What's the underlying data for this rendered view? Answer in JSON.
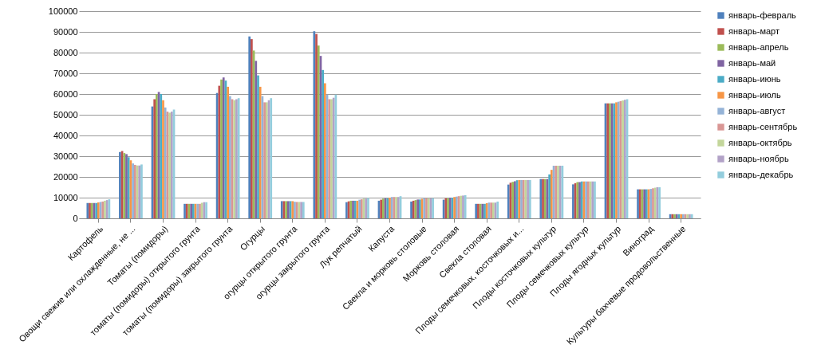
{
  "chart_data": {
    "type": "bar",
    "categories": [
      "Картофель",
      "Овощи свежие или охлажденные, не ...",
      "Томаты (помидоры)",
      "томаты (помидоры) открытого грунта",
      "томаты (помидоры) закрытого грунта",
      "Огурцы",
      "огурцы открытого грунта",
      "огурцы закрытого грунта",
      "Лук репчатый",
      "Капуста",
      "Свекла и морковь столовые",
      "Морковь столовая",
      "Свекла столовая",
      "Плоды семечковых, косточковых и...",
      "Плоды косточковых культур",
      "Плоды семечковых культур",
      "Плоды ягодных культур",
      "Виноград",
      "Культуры бахчевые продовольственные"
    ],
    "series": [
      {
        "name": "январь-февраль",
        "color": "#4f81bd",
        "values": [
          7400,
          32000,
          54000,
          7000,
          60500,
          87800,
          8300,
          90300,
          7800,
          8500,
          8100,
          9000,
          7000,
          16300,
          19000,
          16400,
          55500,
          14000,
          2000
        ]
      },
      {
        "name": "январь-март",
        "color": "#c0504d",
        "values": [
          7400,
          32500,
          57500,
          7000,
          64000,
          86500,
          8300,
          89000,
          8200,
          9000,
          8500,
          9700,
          7000,
          17200,
          19000,
          17000,
          55500,
          14000,
          2000
        ]
      },
      {
        "name": "январь-апрель",
        "color": "#9bbb59",
        "values": [
          7400,
          31500,
          60000,
          7000,
          67000,
          81000,
          8300,
          83400,
          8500,
          9500,
          8800,
          9700,
          7000,
          17600,
          19000,
          17500,
          55500,
          14000,
          2000
        ]
      },
      {
        "name": "январь-май",
        "color": "#8064a2",
        "values": [
          7400,
          31000,
          61000,
          7000,
          68000,
          76000,
          8300,
          78400,
          8500,
          9700,
          9100,
          10000,
          7000,
          17900,
          19000,
          17500,
          55500,
          14000,
          2000
        ]
      },
      {
        "name": "январь-июнь",
        "color": "#4bacc6",
        "values": [
          7400,
          29500,
          60000,
          7000,
          66500,
          69000,
          8300,
          71600,
          8500,
          9700,
          9100,
          10000,
          7000,
          18400,
          21200,
          17800,
          55500,
          14000,
          2000
        ]
      },
      {
        "name": "январь-июль",
        "color": "#f79646",
        "values": [
          7700,
          28000,
          57000,
          7000,
          63500,
          63500,
          8300,
          65200,
          8500,
          10000,
          9400,
          10300,
          7300,
          18500,
          23400,
          17800,
          56000,
          14000,
          2000
        ]
      },
      {
        "name": "январь-август",
        "color": "#95b3d7",
        "values": [
          7900,
          26500,
          53500,
          7000,
          59000,
          59000,
          8000,
          59700,
          9000,
          10300,
          9700,
          10500,
          7600,
          18500,
          25400,
          17800,
          56300,
          14200,
          2000
        ]
      },
      {
        "name": "январь-сентябрь",
        "color": "#d99694",
        "values": [
          8100,
          25800,
          51500,
          7000,
          57500,
          56000,
          7900,
          57500,
          9200,
          10300,
          9700,
          10700,
          7600,
          18500,
          25400,
          17800,
          56600,
          14500,
          2000
        ]
      },
      {
        "name": "январь-октябрь",
        "color": "#c3d69b",
        "values": [
          8500,
          25500,
          51000,
          7500,
          57000,
          56000,
          7900,
          57500,
          9500,
          10300,
          9700,
          10900,
          7600,
          18500,
          25400,
          17800,
          56900,
          14800,
          2000
        ]
      },
      {
        "name": "январь-ноябрь",
        "color": "#b2a2c7",
        "values": [
          8800,
          25500,
          51500,
          7800,
          57500,
          57000,
          7900,
          58200,
          9500,
          10300,
          9700,
          11000,
          7600,
          18500,
          25400,
          17800,
          57200,
          15000,
          2000
        ]
      },
      {
        "name": "январь-декабрь",
        "color": "#93cddd",
        "values": [
          9200,
          26000,
          52500,
          7800,
          58000,
          58000,
          7900,
          59700,
          9800,
          10700,
          9700,
          11200,
          8100,
          18500,
          25400,
          17800,
          57500,
          15000,
          2000
        ]
      }
    ],
    "ylim": [
      0,
      100000
    ],
    "yticks": [
      0,
      10000,
      20000,
      30000,
      40000,
      50000,
      60000,
      70000,
      80000,
      90000,
      100000
    ],
    "grid": "y",
    "legend": "right"
  }
}
